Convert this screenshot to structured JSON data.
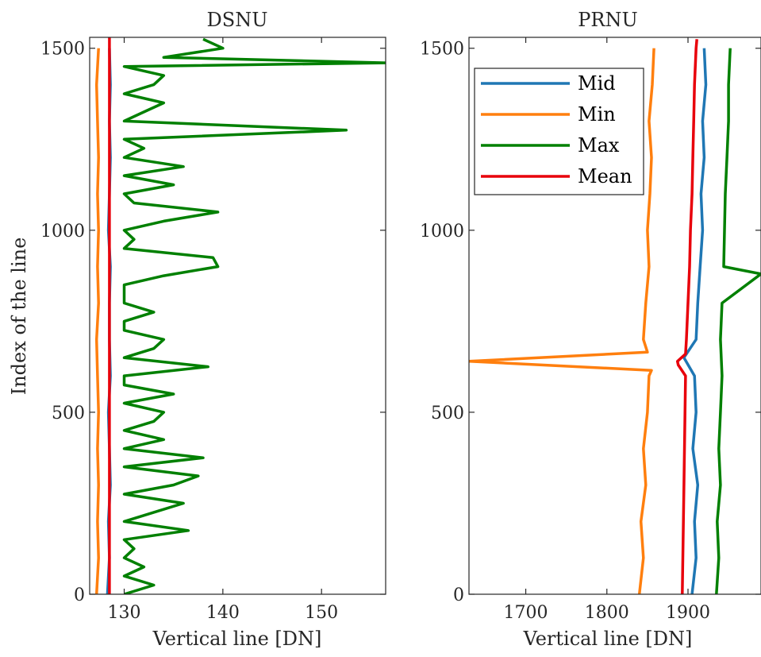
{
  "chart_data": [
    {
      "type": "line",
      "title": "DSNU",
      "xlabel": "Vertical line [DN]",
      "ylabel": "Index of the line",
      "xlim": [
        126.5,
        156.5
      ],
      "ylim": [
        0,
        1530
      ],
      "xticks": [
        130,
        140,
        150
      ],
      "yticks": [
        0,
        500,
        1000,
        1500
      ],
      "grid": false,
      "series": [
        {
          "name": "Mid",
          "color": "#1f77b4",
          "y": [
            0,
            100,
            200,
            300,
            400,
            500,
            600,
            700,
            800,
            900,
            1000,
            1100,
            1200,
            1300,
            1400,
            1500
          ],
          "x": [
            128.3,
            128.5,
            128.4,
            128.6,
            128.5,
            128.4,
            128.6,
            128.5,
            128.5,
            128.6,
            128.4,
            128.5,
            128.6,
            128.5,
            128.6,
            128.5
          ]
        },
        {
          "name": "Min",
          "color": "#ff7f0e",
          "y": [
            0,
            100,
            200,
            300,
            400,
            500,
            600,
            700,
            800,
            900,
            1000,
            1100,
            1200,
            1300,
            1400,
            1500
          ],
          "x": [
            127.2,
            127.4,
            127.3,
            127.4,
            127.3,
            127.4,
            127.3,
            127.2,
            127.4,
            127.3,
            127.4,
            127.3,
            127.4,
            127.3,
            127.2,
            127.4
          ]
        },
        {
          "name": "Max",
          "color": "#008000",
          "y": [
            0,
            25,
            50,
            75,
            100,
            125,
            150,
            175,
            200,
            225,
            250,
            275,
            300,
            325,
            350,
            375,
            400,
            425,
            450,
            475,
            500,
            525,
            550,
            575,
            600,
            625,
            650,
            675,
            700,
            725,
            750,
            775,
            800,
            825,
            850,
            875,
            900,
            925,
            950,
            975,
            1000,
            1025,
            1050,
            1075,
            1100,
            1125,
            1150,
            1175,
            1200,
            1225,
            1250,
            1275,
            1300,
            1325,
            1350,
            1375,
            1400,
            1425,
            1450,
            1460,
            1475,
            1500,
            1525
          ],
          "x": [
            130,
            133,
            130,
            132,
            130,
            131,
            130,
            136.5,
            130,
            133,
            136,
            130,
            135,
            137.5,
            130,
            138,
            130,
            134,
            130,
            133,
            134,
            130,
            135,
            130,
            130,
            138.5,
            130,
            133,
            134,
            130,
            130,
            133,
            130,
            130,
            130,
            134,
            139.5,
            139,
            130,
            131,
            130,
            134,
            139.5,
            131,
            130,
            135,
            130,
            136,
            130,
            132,
            130,
            152.5,
            130,
            132,
            134,
            130,
            133,
            134,
            130,
            156.5,
            134,
            140,
            138
          ]
        },
        {
          "name": "Mean",
          "color": "#e8000b",
          "y": [
            0,
            1530
          ],
          "x": [
            128.5,
            128.5
          ]
        }
      ]
    },
    {
      "type": "line",
      "title": "PRNU",
      "xlabel": "Vertical line [DN]",
      "ylabel": "",
      "xlim": [
        1630,
        1990
      ],
      "ylim": [
        0,
        1530
      ],
      "xticks": [
        1700,
        1800,
        1900
      ],
      "yticks": [
        0,
        500,
        1000,
        1500
      ],
      "grid": false,
      "legend": {
        "position": "top-left",
        "entries": [
          "Mid",
          "Min",
          "Max",
          "Mean"
        ]
      },
      "series": [
        {
          "name": "Mid",
          "color": "#1f77b4",
          "y": [
            0,
            100,
            200,
            300,
            400,
            500,
            600,
            650,
            700,
            800,
            900,
            1000,
            1100,
            1200,
            1300,
            1400,
            1500
          ],
          "x": [
            1905,
            1910,
            1908,
            1912,
            1906,
            1910,
            1908,
            1895,
            1910,
            1912,
            1915,
            1918,
            1916,
            1920,
            1918,
            1922,
            1920
          ]
        },
        {
          "name": "Min",
          "color": "#ff7f0e",
          "y": [
            0,
            100,
            200,
            300,
            400,
            500,
            600,
            615,
            640,
            665,
            700,
            800,
            900,
            1000,
            1100,
            1200,
            1300,
            1400,
            1500
          ],
          "x": [
            1840,
            1845,
            1842,
            1848,
            1845,
            1850,
            1852,
            1855,
            1630,
            1850,
            1845,
            1848,
            1852,
            1850,
            1853,
            1855,
            1852,
            1856,
            1858
          ]
        },
        {
          "name": "Max",
          "color": "#008000",
          "y": [
            0,
            100,
            200,
            300,
            400,
            500,
            600,
            700,
            800,
            880,
            900,
            1000,
            1100,
            1200,
            1300,
            1400,
            1500
          ],
          "x": [
            1935,
            1938,
            1936,
            1940,
            1938,
            1940,
            1942,
            1940,
            1942,
            1990,
            1944,
            1945,
            1946,
            1948,
            1950,
            1950,
            1952
          ]
        },
        {
          "name": "Mean",
          "color": "#e8000b",
          "y": [
            0,
            300,
            600,
            630,
            640,
            660,
            700,
            800,
            900,
            1000,
            1100,
            1200,
            1300,
            1400,
            1500,
            1525
          ],
          "x": [
            1893,
            1895,
            1897,
            1888,
            1887,
            1897,
            1898,
            1900,
            1902,
            1903,
            1905,
            1906,
            1907,
            1908,
            1910,
            1911
          ]
        }
      ]
    }
  ]
}
